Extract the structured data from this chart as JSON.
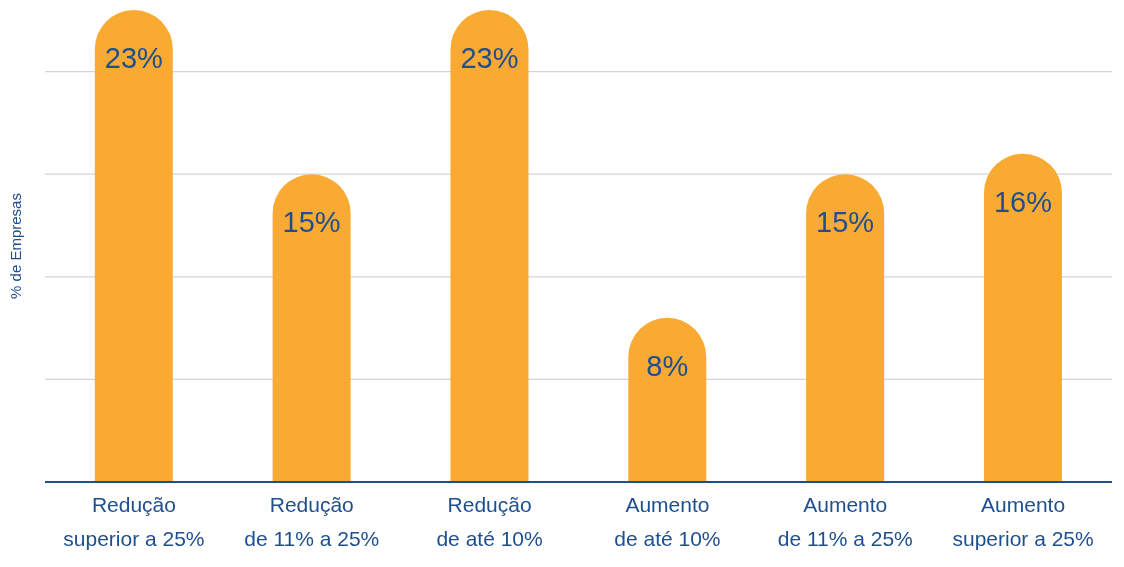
{
  "chart_data": {
    "type": "bar",
    "ylabel": "% de Empresas",
    "categories": [
      "Redução\nsuperior a 25%",
      "Redução\nde 11% a 25%",
      "Redução\nde até 10%",
      "Aumento\nde até 10%",
      "Aumento\nde 11% a 25%",
      "Aumento\nsuperior a 25%"
    ],
    "values": [
      23,
      15,
      23,
      8,
      15,
      16
    ],
    "value_labels": [
      "23%",
      "15%",
      "23%",
      "8%",
      "15%",
      "16%"
    ],
    "color": "#f9aa33",
    "ylim": [
      0,
      23
    ],
    "yticks": [
      {
        "value": 0,
        "label": null
      },
      {
        "value": 5,
        "label": null
      },
      {
        "value": 10,
        "label": null
      },
      {
        "value": 15,
        "label": null
      },
      {
        "value": 20,
        "label": null
      }
    ],
    "grid": "y",
    "tick_labels": "x",
    "legend": false
  }
}
